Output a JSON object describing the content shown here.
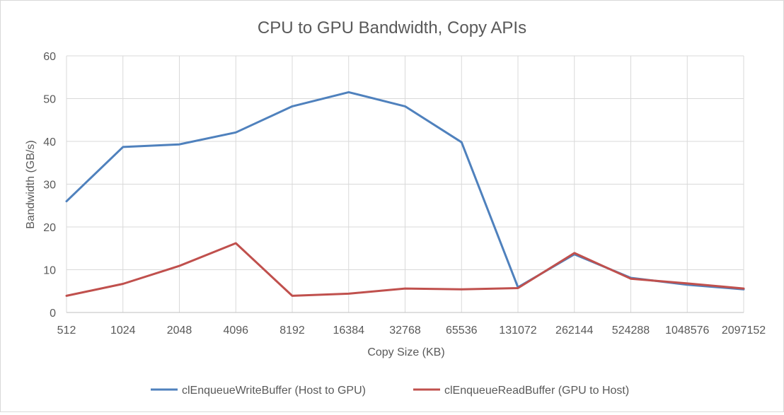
{
  "chart_data": {
    "type": "line",
    "title": "CPU to GPU Bandwidth, Copy APIs",
    "xlabel": "Copy Size (KB)",
    "ylabel": "Bandwidth (GB/s)",
    "categories": [
      "512",
      "1024",
      "2048",
      "4096",
      "8192",
      "16384",
      "32768",
      "65536",
      "131072",
      "262144",
      "524288",
      "1048576",
      "2097152"
    ],
    "ylim": [
      0,
      60
    ],
    "yticks": [
      0,
      10,
      20,
      30,
      40,
      50,
      60
    ],
    "grid": true,
    "legend_position": "bottom",
    "series": [
      {
        "name": "clEnqueueWriteBuffer (Host to GPU)",
        "color": "#4f81bd",
        "values": [
          26.0,
          38.7,
          39.3,
          42.1,
          48.2,
          51.5,
          48.2,
          39.8,
          5.9,
          13.6,
          8.1,
          6.5,
          5.4
        ]
      },
      {
        "name": "clEnqueueReadBuffer (GPU to Host)",
        "color": "#c0504d",
        "values": [
          3.9,
          6.7,
          10.9,
          16.2,
          3.9,
          4.4,
          5.6,
          5.4,
          5.7,
          13.9,
          7.9,
          6.8,
          5.6
        ]
      }
    ]
  }
}
